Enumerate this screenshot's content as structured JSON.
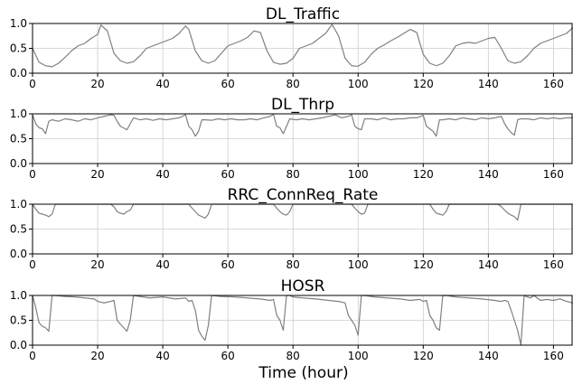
{
  "chart_data": [
    {
      "type": "line",
      "title": "DL_Traffic",
      "xlim": [
        0,
        166
      ],
      "ylim": [
        0,
        1
      ],
      "xticks": [
        0,
        20,
        40,
        60,
        80,
        100,
        120,
        140,
        160
      ],
      "yticks": [
        0.0,
        0.5,
        1.0
      ],
      "ytick_labels": [
        "0.0",
        "0.5",
        "1.0"
      ],
      "grid": true,
      "color": "#808080",
      "series": [
        {
          "x": [
            0,
            2,
            4,
            6,
            8,
            10,
            12,
            14,
            16,
            18,
            20,
            21,
            23,
            25,
            27,
            29,
            31,
            33,
            35,
            37,
            39,
            41,
            43,
            45,
            47,
            48,
            50,
            52,
            54,
            56,
            58,
            60,
            62,
            64,
            66,
            68,
            70,
            72,
            74,
            76,
            78,
            80,
            82,
            84,
            86,
            88,
            90,
            92,
            94,
            96,
            98,
            100,
            102,
            104,
            106,
            108,
            110,
            112,
            114,
            116,
            118,
            120,
            122,
            124,
            126,
            128,
            130,
            132,
            134,
            136,
            138,
            140,
            142,
            144,
            146,
            148,
            150,
            152,
            154,
            156,
            158,
            160,
            162,
            164,
            166
          ],
          "y": [
            0.5,
            0.22,
            0.15,
            0.13,
            0.2,
            0.32,
            0.45,
            0.55,
            0.6,
            0.7,
            0.78,
            0.97,
            0.85,
            0.4,
            0.25,
            0.2,
            0.23,
            0.35,
            0.5,
            0.55,
            0.6,
            0.65,
            0.7,
            0.8,
            0.95,
            0.88,
            0.45,
            0.25,
            0.2,
            0.25,
            0.4,
            0.55,
            0.6,
            0.65,
            0.72,
            0.85,
            0.82,
            0.45,
            0.22,
            0.18,
            0.2,
            0.3,
            0.5,
            0.55,
            0.6,
            0.7,
            0.8,
            0.98,
            0.75,
            0.3,
            0.15,
            0.14,
            0.22,
            0.38,
            0.5,
            0.57,
            0.65,
            0.72,
            0.8,
            0.88,
            0.82,
            0.38,
            0.2,
            0.15,
            0.2,
            0.35,
            0.55,
            0.6,
            0.62,
            0.6,
            0.65,
            0.7,
            0.72,
            0.5,
            0.25,
            0.2,
            0.23,
            0.35,
            0.5,
            0.6,
            0.65,
            0.7,
            0.75,
            0.8,
            0.92
          ]
        }
      ]
    },
    {
      "type": "line",
      "title": "DL_Thrp",
      "xlim": [
        0,
        166
      ],
      "ylim": [
        0,
        1
      ],
      "xticks": [
        0,
        20,
        40,
        60,
        80,
        100,
        120,
        140,
        160
      ],
      "yticks": [
        0.0,
        0.5,
        1.0
      ],
      "ytick_labels": [
        "0.0",
        "0.5",
        "1.0"
      ],
      "grid": true,
      "color": "#808080",
      "series": [
        {
          "x": [
            0,
            1,
            2,
            3,
            4,
            5,
            6,
            8,
            10,
            12,
            14,
            16,
            18,
            20,
            22,
            24,
            25,
            26,
            27,
            29,
            31,
            33,
            35,
            37,
            39,
            41,
            43,
            45,
            47,
            48,
            49,
            50,
            51,
            52,
            53,
            55,
            57,
            59,
            61,
            63,
            65,
            67,
            69,
            71,
            73,
            74,
            75,
            76,
            77,
            78,
            79,
            81,
            83,
            85,
            87,
            89,
            91,
            93,
            95,
            97,
            98,
            99,
            100,
            101,
            102,
            104,
            106,
            108,
            110,
            112,
            114,
            116,
            118,
            120,
            121,
            122,
            123,
            124,
            125,
            126,
            128,
            130,
            132,
            134,
            136,
            138,
            140,
            142,
            144,
            145,
            146,
            147,
            148,
            149,
            150,
            152,
            154,
            156,
            158,
            160,
            162,
            164,
            166
          ],
          "y": [
            0.98,
            0.8,
            0.72,
            0.7,
            0.6,
            0.85,
            0.88,
            0.85,
            0.9,
            0.88,
            0.85,
            0.9,
            0.88,
            0.92,
            0.95,
            0.98,
            0.97,
            0.85,
            0.75,
            0.68,
            0.92,
            0.88,
            0.9,
            0.87,
            0.9,
            0.88,
            0.9,
            0.92,
            0.98,
            0.75,
            0.68,
            0.55,
            0.65,
            0.88,
            0.88,
            0.87,
            0.9,
            0.88,
            0.9,
            0.88,
            0.88,
            0.9,
            0.88,
            0.92,
            0.95,
            0.99,
            0.75,
            0.72,
            0.6,
            0.75,
            0.9,
            0.88,
            0.9,
            0.88,
            0.9,
            0.92,
            0.95,
            0.98,
            0.92,
            0.95,
            0.98,
            0.75,
            0.7,
            0.68,
            0.9,
            0.9,
            0.88,
            0.92,
            0.88,
            0.9,
            0.9,
            0.92,
            0.92,
            0.97,
            0.75,
            0.7,
            0.65,
            0.55,
            0.88,
            0.88,
            0.9,
            0.88,
            0.92,
            0.9,
            0.88,
            0.92,
            0.9,
            0.92,
            0.95,
            0.8,
            0.7,
            0.62,
            0.57,
            0.88,
            0.9,
            0.9,
            0.88,
            0.92,
            0.9,
            0.92,
            0.9,
            0.92,
            0.92
          ]
        }
      ]
    },
    {
      "type": "line",
      "title": "RRC_ConnReq_Rate",
      "xlim": [
        0,
        166
      ],
      "ylim": [
        0,
        1
      ],
      "xticks": [
        0,
        20,
        40,
        60,
        80,
        100,
        120,
        140,
        160
      ],
      "yticks": [
        0.0,
        0.5,
        1.0
      ],
      "ytick_labels": [
        "0.0",
        "0.5",
        "1.0"
      ],
      "grid": true,
      "color": "#808080",
      "series": [
        {
          "x": [
            0,
            1,
            2,
            3,
            4,
            5,
            6,
            7,
            10,
            15,
            20,
            24,
            25,
            26,
            27,
            28,
            29,
            30,
            31,
            35,
            40,
            45,
            48,
            49,
            50,
            51,
            52,
            53,
            54,
            55,
            60,
            65,
            70,
            74,
            75,
            76,
            77,
            78,
            79,
            80,
            85,
            90,
            95,
            98,
            99,
            100,
            101,
            102,
            103,
            105,
            110,
            115,
            120,
            122,
            123,
            124,
            125,
            126,
            127,
            128,
            130,
            135,
            140,
            143,
            144,
            145,
            146,
            147,
            148,
            149,
            150,
            155,
            160,
            166
          ],
          "y": [
            1.0,
            0.9,
            0.82,
            0.8,
            0.78,
            0.75,
            0.8,
            1.0,
            1.0,
            1.0,
            1.0,
            1.0,
            0.95,
            0.85,
            0.82,
            0.8,
            0.85,
            0.88,
            1.0,
            1.0,
            1.0,
            1.0,
            1.0,
            0.92,
            0.85,
            0.78,
            0.75,
            0.72,
            0.8,
            1.0,
            1.0,
            1.0,
            1.0,
            1.0,
            0.92,
            0.85,
            0.8,
            0.78,
            0.85,
            1.0,
            1.0,
            1.0,
            1.0,
            1.0,
            0.92,
            0.85,
            0.8,
            0.82,
            1.0,
            1.0,
            1.0,
            1.0,
            1.0,
            1.0,
            0.9,
            0.82,
            0.8,
            0.78,
            0.85,
            1.0,
            1.0,
            1.0,
            1.0,
            1.0,
            0.95,
            0.88,
            0.82,
            0.78,
            0.75,
            0.68,
            1.0,
            1.0,
            1.0,
            1.0
          ]
        }
      ]
    },
    {
      "type": "line",
      "title": "HOSR",
      "xlim": [
        0,
        166
      ],
      "ylim": [
        0,
        1
      ],
      "xticks": [
        0,
        20,
        40,
        60,
        80,
        100,
        120,
        140,
        160
      ],
      "yticks": [
        0.0,
        0.5,
        1.0
      ],
      "ytick_labels": [
        "0.0",
        "0.5",
        "1.0"
      ],
      "grid": true,
      "color": "#808080",
      "series": [
        {
          "x": [
            0,
            1,
            2,
            3,
            4,
            5,
            6,
            7,
            10,
            13,
            16,
            19,
            20,
            22,
            24,
            25,
            26,
            27,
            28,
            29,
            30,
            31,
            33,
            36,
            40,
            44,
            47,
            48,
            49,
            50,
            51,
            52,
            53,
            54,
            55,
            58,
            62,
            66,
            70,
            73,
            74,
            75,
            76,
            77,
            78,
            79,
            80,
            83,
            87,
            91,
            94,
            96,
            97,
            98,
            99,
            100,
            101,
            102,
            105,
            109,
            113,
            116,
            119,
            120,
            121,
            122,
            123,
            124,
            125,
            126,
            127,
            130,
            134,
            138,
            142,
            144,
            145,
            146,
            147,
            148,
            149,
            150,
            151,
            152,
            153,
            154,
            155,
            156,
            158,
            160,
            162,
            164,
            166
          ],
          "y": [
            1.0,
            0.75,
            0.45,
            0.38,
            0.35,
            0.28,
            1.0,
            1.0,
            0.98,
            0.97,
            0.95,
            0.93,
            0.88,
            0.85,
            0.88,
            0.9,
            0.5,
            0.42,
            0.35,
            0.28,
            0.5,
            1.0,
            0.98,
            0.95,
            0.97,
            0.93,
            0.95,
            0.88,
            0.9,
            0.7,
            0.3,
            0.18,
            0.1,
            0.4,
            1.0,
            0.98,
            0.97,
            0.95,
            0.93,
            0.9,
            0.92,
            0.6,
            0.5,
            0.3,
            1.0,
            1.0,
            0.97,
            0.95,
            0.93,
            0.9,
            0.88,
            0.85,
            0.6,
            0.5,
            0.4,
            0.2,
            1.0,
            1.0,
            0.97,
            0.95,
            0.93,
            0.9,
            0.92,
            0.88,
            0.9,
            0.6,
            0.5,
            0.35,
            0.3,
            1.0,
            1.0,
            0.97,
            0.95,
            0.93,
            0.9,
            0.88,
            0.9,
            0.88,
            0.7,
            0.5,
            0.3,
            0.0,
            1.0,
            0.97,
            0.95,
            1.0,
            0.95,
            0.9,
            0.92,
            0.9,
            0.93,
            0.88,
            0.85
          ]
        }
      ]
    }
  ],
  "figure": {
    "xlabel": "Time (hour)"
  }
}
